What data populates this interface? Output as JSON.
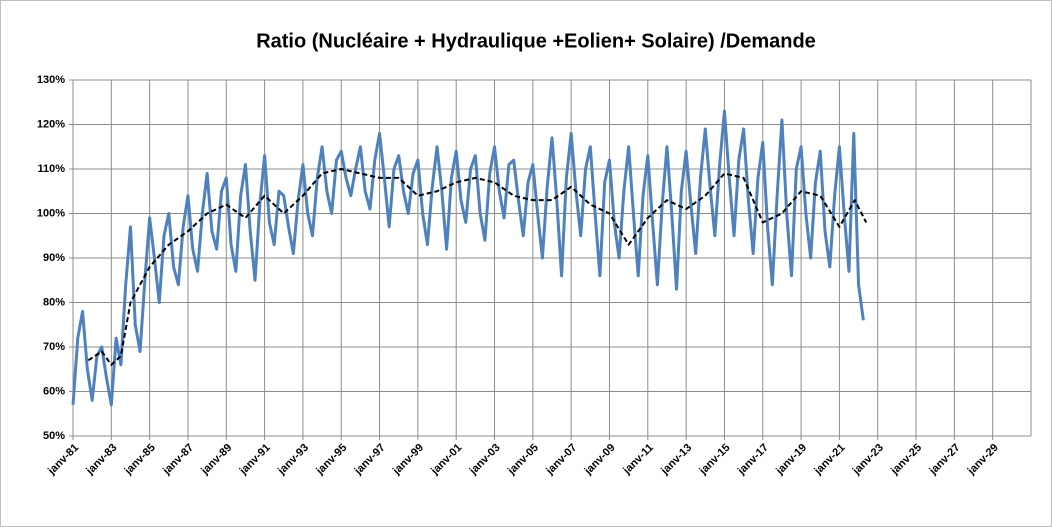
{
  "chart_data": {
    "type": "line",
    "title": "Ratio (Nucléaire + Hydraulique +Eolien+ Solaire) /Demande",
    "xlim": [
      1981,
      2031
    ],
    "xticks": [
      {
        "value": 1981,
        "label": "janv-81"
      },
      {
        "value": 1983,
        "label": "janv-83"
      },
      {
        "value": 1985,
        "label": "janv-85"
      },
      {
        "value": 1987,
        "label": "janv-87"
      },
      {
        "value": 1989,
        "label": "janv-89"
      },
      {
        "value": 1991,
        "label": "janv-91"
      },
      {
        "value": 1993,
        "label": "janv-93"
      },
      {
        "value": 1995,
        "label": "janv-95"
      },
      {
        "value": 1997,
        "label": "janv-97"
      },
      {
        "value": 1999,
        "label": "janv-99"
      },
      {
        "value": 2001,
        "label": "janv-01"
      },
      {
        "value": 2003,
        "label": "janv-03"
      },
      {
        "value": 2005,
        "label": "janv-05"
      },
      {
        "value": 2007,
        "label": "janv-07"
      },
      {
        "value": 2009,
        "label": "janv-09"
      },
      {
        "value": 2011,
        "label": "janv-11"
      },
      {
        "value": 2013,
        "label": "janv-13"
      },
      {
        "value": 2015,
        "label": "janv-15"
      },
      {
        "value": 2017,
        "label": "janv-17"
      },
      {
        "value": 2019,
        "label": "janv-19"
      },
      {
        "value": 2021,
        "label": "janv-21"
      },
      {
        "value": 2023,
        "label": "janv-23"
      },
      {
        "value": 2025,
        "label": "janv-25"
      },
      {
        "value": 2027,
        "label": "janv-27"
      },
      {
        "value": 2029,
        "label": "janv-29"
      }
    ],
    "ylim": [
      50,
      130
    ],
    "yticks": [
      {
        "value": 50,
        "label": "50%"
      },
      {
        "value": 60,
        "label": "60%"
      },
      {
        "value": 70,
        "label": "70%"
      },
      {
        "value": 80,
        "label": "80%"
      },
      {
        "value": 90,
        "label": "90%"
      },
      {
        "value": 100,
        "label": "100%"
      },
      {
        "value": 110,
        "label": "110%"
      },
      {
        "value": 120,
        "label": "120%"
      },
      {
        "value": 130,
        "label": "130%"
      }
    ],
    "grid": true,
    "series": [
      {
        "color": "#4f81bd",
        "dashed": false,
        "x": [
          1981,
          1981.25,
          1981.5,
          1981.75,
          1982,
          1982.25,
          1982.5,
          1982.75,
          1983,
          1983.25,
          1983.5,
          1983.75,
          1984,
          1984.25,
          1984.5,
          1984.75,
          1985,
          1985.25,
          1985.5,
          1985.75,
          1986,
          1986.25,
          1986.5,
          1986.75,
          1987,
          1987.25,
          1987.5,
          1987.75,
          1988,
          1988.25,
          1988.5,
          1988.75,
          1989,
          1989.25,
          1989.5,
          1989.75,
          1990,
          1990.25,
          1990.5,
          1990.75,
          1991,
          1991.25,
          1991.5,
          1991.75,
          1992,
          1992.25,
          1992.5,
          1992.75,
          1993,
          1993.25,
          1993.5,
          1993.75,
          1994,
          1994.25,
          1994.5,
          1994.75,
          1995,
          1995.25,
          1995.5,
          1995.75,
          1996,
          1996.25,
          1996.5,
          1996.75,
          1997,
          1997.25,
          1997.5,
          1997.75,
          1998,
          1998.25,
          1998.5,
          1998.75,
          1999,
          1999.25,
          1999.5,
          1999.75,
          2000,
          2000.25,
          2000.5,
          2000.75,
          2001,
          2001.25,
          2001.5,
          2001.75,
          2002,
          2002.25,
          2002.5,
          2002.75,
          2003,
          2003.25,
          2003.5,
          2003.75,
          2004,
          2004.25,
          2004.5,
          2004.75,
          2005,
          2005.25,
          2005.5,
          2005.75,
          2006,
          2006.25,
          2006.5,
          2006.75,
          2007,
          2007.25,
          2007.5,
          2007.75,
          2008,
          2008.25,
          2008.5,
          2008.75,
          2009,
          2009.25,
          2009.5,
          2009.75,
          2010,
          2010.25,
          2010.5,
          2010.75,
          2011,
          2011.25,
          2011.5,
          2011.75,
          2012,
          2012.25,
          2012.5,
          2012.75,
          2013,
          2013.25,
          2013.5,
          2013.75,
          2014,
          2014.25,
          2014.5,
          2014.75,
          2015,
          2015.25,
          2015.5,
          2015.75,
          2016,
          2016.25,
          2016.5,
          2016.75,
          2017,
          2017.25,
          2017.5,
          2017.75,
          2018,
          2018.25,
          2018.5,
          2018.75,
          2019,
          2019.25,
          2019.5,
          2019.75,
          2020,
          2020.25,
          2020.5,
          2020.75,
          2021,
          2021.25,
          2021.5,
          2021.75,
          2022,
          2022.25
        ],
        "values": [
          57,
          72,
          78,
          65,
          58,
          68,
          70,
          63,
          57,
          72,
          66,
          84,
          97,
          75,
          69,
          85,
          99,
          90,
          80,
          95,
          100,
          88,
          84,
          97,
          104,
          92,
          87,
          100,
          109,
          96,
          92,
          105,
          108,
          93,
          87,
          104,
          111,
          96,
          85,
          102,
          113,
          98,
          93,
          105,
          104,
          97,
          91,
          103,
          111,
          100,
          95,
          108,
          115,
          105,
          100,
          112,
          114,
          108,
          104,
          110,
          115,
          105,
          101,
          112,
          118,
          108,
          97,
          110,
          113,
          105,
          100,
          109,
          112,
          100,
          93,
          106,
          115,
          105,
          92,
          108,
          114,
          103,
          98,
          110,
          113,
          100,
          94,
          109,
          115,
          105,
          99,
          111,
          112,
          103,
          95,
          107,
          111,
          100,
          90,
          106,
          117,
          103,
          86,
          108,
          118,
          105,
          95,
          110,
          115,
          100,
          86,
          107,
          112,
          98,
          90,
          105,
          115,
          100,
          86,
          104,
          113,
          98,
          84,
          102,
          115,
          100,
          83,
          105,
          114,
          102,
          91,
          108,
          119,
          106,
          95,
          111,
          123,
          108,
          95,
          112,
          119,
          103,
          91,
          108,
          116,
          97,
          84,
          104,
          121,
          100,
          86,
          110,
          115,
          100,
          90,
          107,
          114,
          96,
          88,
          104,
          115,
          100,
          87,
          118,
          84,
          76
        ]
      },
      {
        "color": "#000000",
        "dashed": true,
        "x": [
          1981.8,
          1982.5,
          1983,
          1983.5,
          1984,
          1985,
          1986,
          1987,
          1988,
          1989,
          1990,
          1991,
          1992,
          1993,
          1994,
          1995,
          1996,
          1997,
          1998,
          1999,
          2000,
          2001,
          2002,
          2003,
          2004,
          2005,
          2006,
          2007,
          2008,
          2009,
          2010,
          2011,
          2012,
          2013,
          2014,
          2015,
          2016,
          2017,
          2018,
          2019,
          2020,
          2021,
          2021.8,
          2022.4
        ],
        "values": [
          67,
          69,
          66,
          68,
          80,
          88,
          93,
          96,
          100,
          102,
          99,
          104,
          100,
          104,
          109,
          110,
          109,
          108,
          108,
          104,
          105,
          107,
          108,
          107,
          104,
          103,
          103,
          106,
          102,
          100,
          93,
          99,
          103,
          101,
          104,
          109,
          108,
          98,
          100,
          105,
          104,
          97,
          103,
          98
        ]
      }
    ]
  }
}
